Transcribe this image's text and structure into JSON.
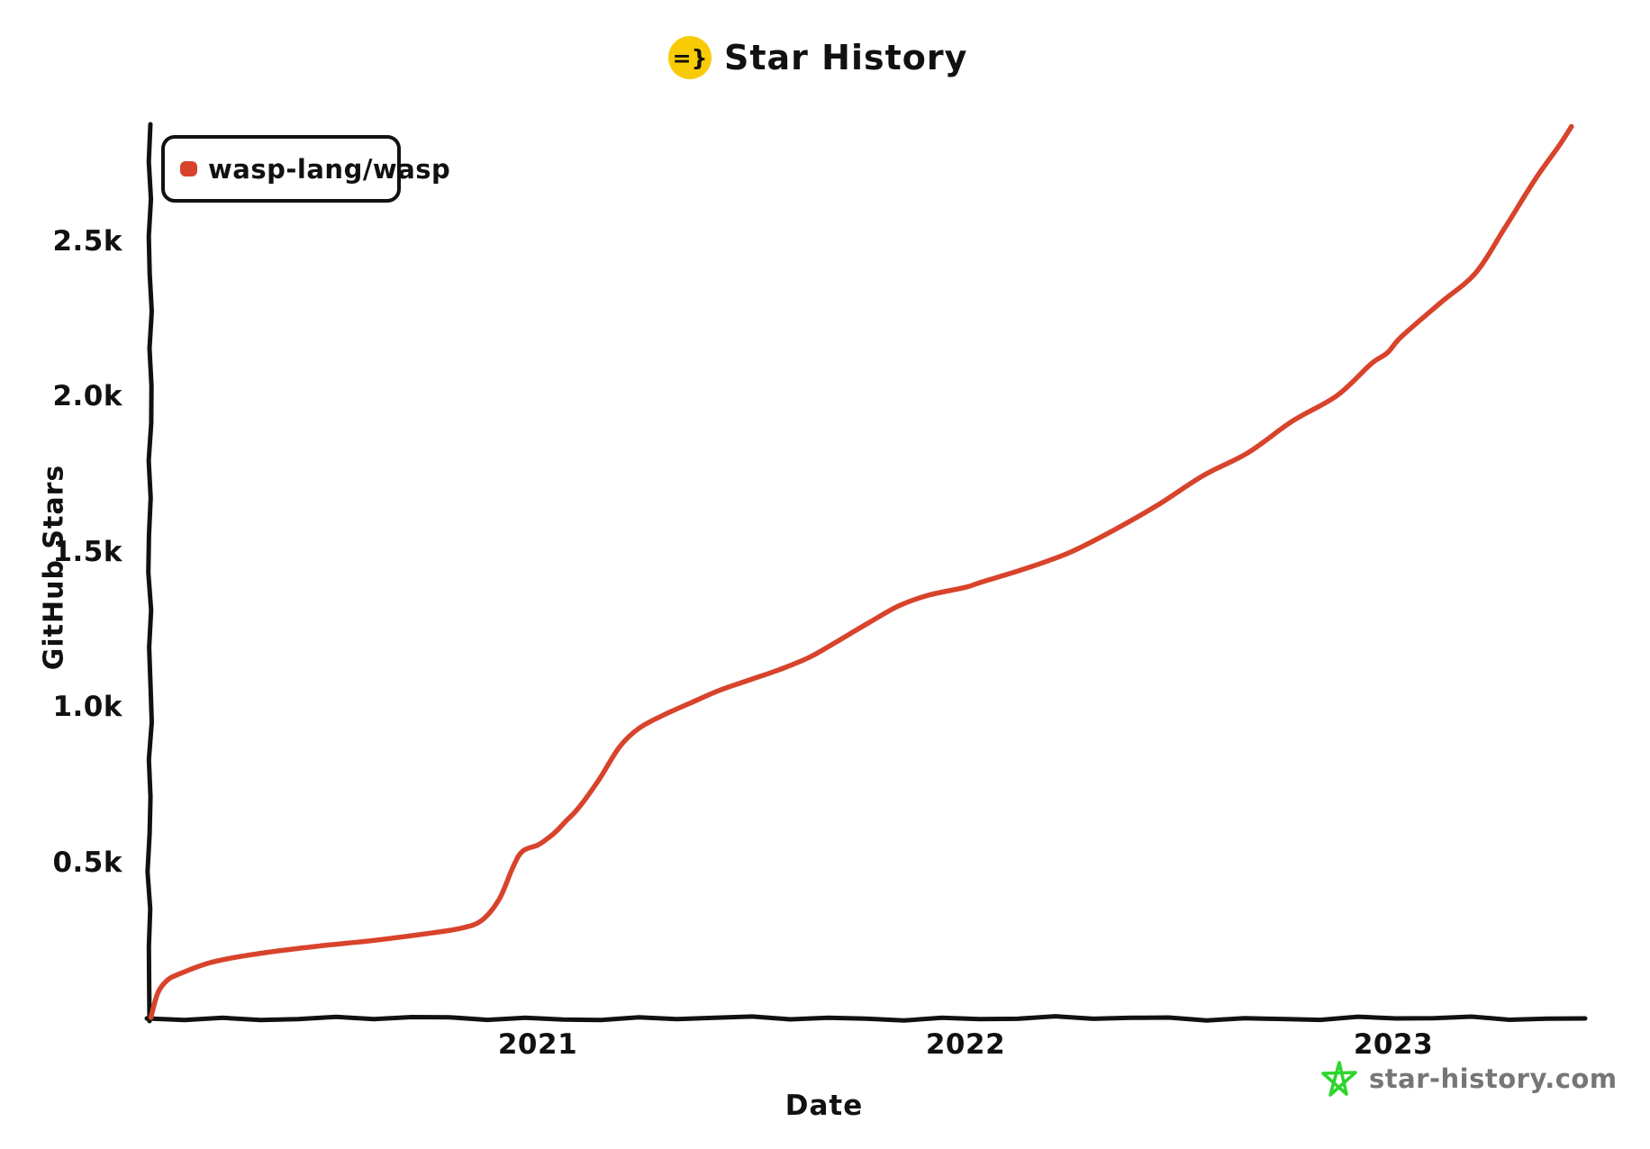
{
  "title": {
    "text": "Star History",
    "icon_glyph": "=}",
    "icon_bg": "#f9cb06"
  },
  "legend": {
    "items": [
      {
        "label": "wasp-lang/wasp",
        "color": "#d8432b"
      }
    ]
  },
  "footer": {
    "brand": "star-history.com",
    "brand_color": "#767676",
    "star_icon_color": "#2ed52e"
  },
  "chart_data": {
    "type": "line",
    "title": "Star History",
    "xlabel": "Date",
    "ylabel": "GitHub Stars",
    "grid": false,
    "legend_position": "top-left",
    "axis_color": "#111111",
    "x_range": [
      "2020-02-05",
      "2023-06-10"
    ],
    "ylim": [
      0,
      2900
    ],
    "x_ticks": [
      {
        "label": "2021",
        "date": "2021-01-01"
      },
      {
        "label": "2022",
        "date": "2022-01-01"
      },
      {
        "label": "2023",
        "date": "2023-01-01"
      }
    ],
    "y_ticks": [
      {
        "label": "0.5k",
        "value": 500
      },
      {
        "label": "1.0k",
        "value": 1000
      },
      {
        "label": "1.5k",
        "value": 1500
      },
      {
        "label": "2.0k",
        "value": 2000
      },
      {
        "label": "2.5k",
        "value": 2500
      }
    ],
    "series": [
      {
        "name": "wasp-lang/wasp",
        "color": "#d8432b",
        "points": [
          [
            "2020-02-06",
            0
          ],
          [
            "2020-02-12",
            80
          ],
          [
            "2020-02-20",
            120
          ],
          [
            "2020-03-01",
            140
          ],
          [
            "2020-03-26",
            175
          ],
          [
            "2020-04-20",
            195
          ],
          [
            "2020-05-16",
            210
          ],
          [
            "2020-06-10",
            222
          ],
          [
            "2020-07-05",
            233
          ],
          [
            "2020-08-01",
            243
          ],
          [
            "2020-08-25",
            253
          ],
          [
            "2020-10-02",
            272
          ],
          [
            "2020-10-27",
            287
          ],
          [
            "2020-11-14",
            312
          ],
          [
            "2020-11-29",
            380
          ],
          [
            "2020-12-11",
            485
          ],
          [
            "2020-12-19",
            535
          ],
          [
            "2021-01-01",
            555
          ],
          [
            "2021-01-09",
            575
          ],
          [
            "2021-01-17",
            600
          ],
          [
            "2021-01-25",
            632
          ],
          [
            "2021-02-02",
            662
          ],
          [
            "2021-02-11",
            705
          ],
          [
            "2021-02-23",
            770
          ],
          [
            "2021-03-12",
            872
          ],
          [
            "2021-03-28",
            930
          ],
          [
            "2021-04-18",
            973
          ],
          [
            "2021-05-11",
            1012
          ],
          [
            "2021-06-05",
            1053
          ],
          [
            "2021-07-01",
            1087
          ],
          [
            "2021-07-27",
            1121
          ],
          [
            "2021-08-21",
            1160
          ],
          [
            "2021-09-15",
            1214
          ],
          [
            "2021-10-11",
            1272
          ],
          [
            "2021-11-05",
            1325
          ],
          [
            "2021-11-30",
            1359
          ],
          [
            "2022-01-01",
            1385
          ],
          [
            "2022-01-14",
            1401
          ],
          [
            "2022-02-21",
            1445
          ],
          [
            "2022-03-31",
            1497
          ],
          [
            "2022-05-08",
            1570
          ],
          [
            "2022-06-15",
            1652
          ],
          [
            "2022-07-23",
            1745
          ],
          [
            "2022-08-30",
            1818
          ],
          [
            "2022-10-07",
            1920
          ],
          [
            "2022-11-14",
            2002
          ],
          [
            "2022-12-13",
            2104
          ],
          [
            "2022-12-27",
            2140
          ],
          [
            "2023-01-08",
            2192
          ],
          [
            "2023-02-10",
            2300
          ],
          [
            "2023-03-12",
            2396
          ],
          [
            "2023-04-06",
            2541
          ],
          [
            "2023-05-02",
            2698
          ],
          [
            "2023-05-22",
            2804
          ],
          [
            "2023-06-02",
            2868
          ]
        ]
      }
    ]
  }
}
